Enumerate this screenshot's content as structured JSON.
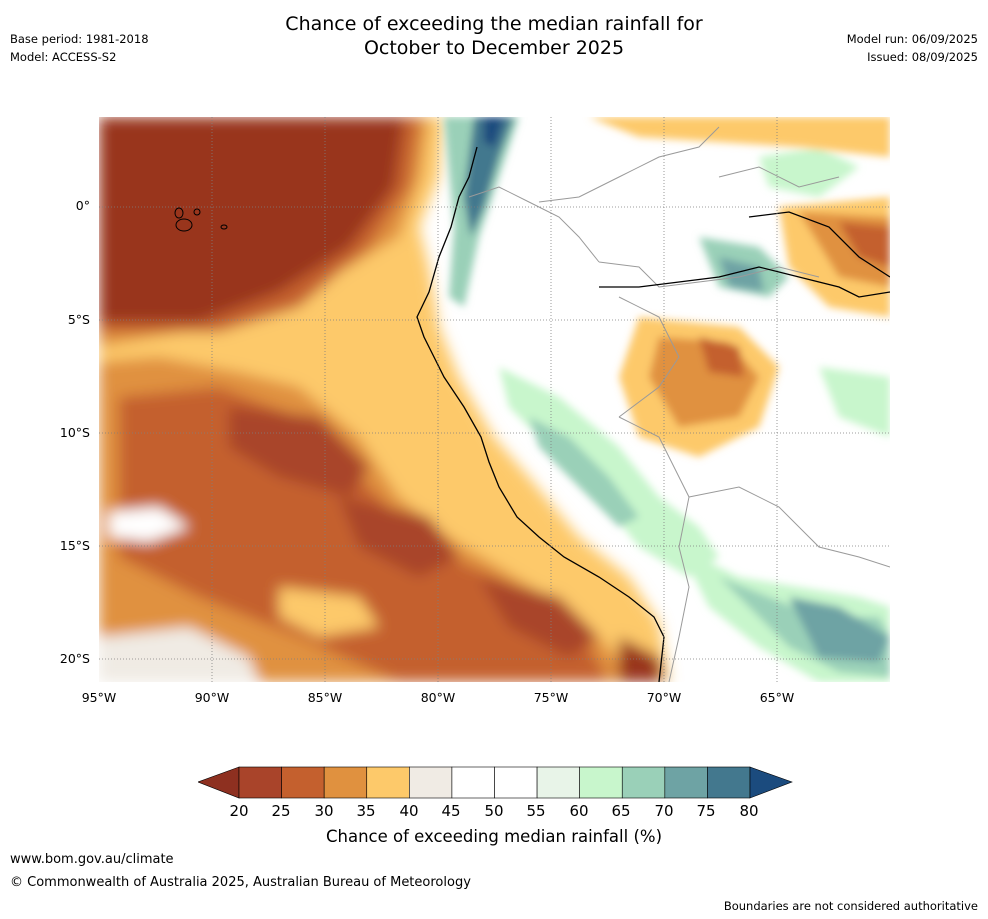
{
  "title": {
    "line1": "Chance of exceeding the median rainfall for",
    "line2": "October to December 2025"
  },
  "meta": {
    "base_period": "Base period: 1981-2018",
    "model": "Model: ACCESS-S2",
    "model_run": "Model run: 06/09/2025",
    "issued": "Issued: 08/09/2025"
  },
  "map": {
    "lon_range": [
      -95,
      -60
    ],
    "lat_range": [
      -21,
      4
    ],
    "lat_ticks": [
      {
        "value": 0,
        "label": "0°"
      },
      {
        "value": -5,
        "label": "5°S"
      },
      {
        "value": -10,
        "label": "10°S"
      },
      {
        "value": -15,
        "label": "15°S"
      },
      {
        "value": -20,
        "label": "20°S"
      }
    ],
    "lon_ticks": [
      {
        "value": -95,
        "label": "95°W"
      },
      {
        "value": -90,
        "label": "90°W"
      },
      {
        "value": -85,
        "label": "85°W"
      },
      {
        "value": -80,
        "label": "80°W"
      },
      {
        "value": -75,
        "label": "75°W"
      },
      {
        "value": -70,
        "label": "70°W"
      },
      {
        "value": -65,
        "label": "65°W"
      }
    ]
  },
  "colorbar": {
    "labels": [
      "20",
      "25",
      "30",
      "35",
      "40",
      "45",
      "50",
      "55",
      "60",
      "65",
      "70",
      "75",
      "80"
    ],
    "low_color": "#8e3020",
    "high_color": "#1b4b7e",
    "colors": [
      "#a9442a",
      "#c4602e",
      "#e0913f",
      "#fdc96a",
      "#f0ebe4",
      "#ffffff",
      "#ffffff",
      "#e8f4e8",
      "#c8f6cc",
      "#9ad0b8",
      "#6ea3a4",
      "#43788e"
    ],
    "title": "Chance of exceeding median rainfall (%)"
  },
  "footer": {
    "url": "www.bom.gov.au/climate",
    "copyright": "© Commonwealth of Australia 2025, Australian Bureau of Meteorology",
    "disclaimer": "Boundaries are not considered authoritative"
  }
}
